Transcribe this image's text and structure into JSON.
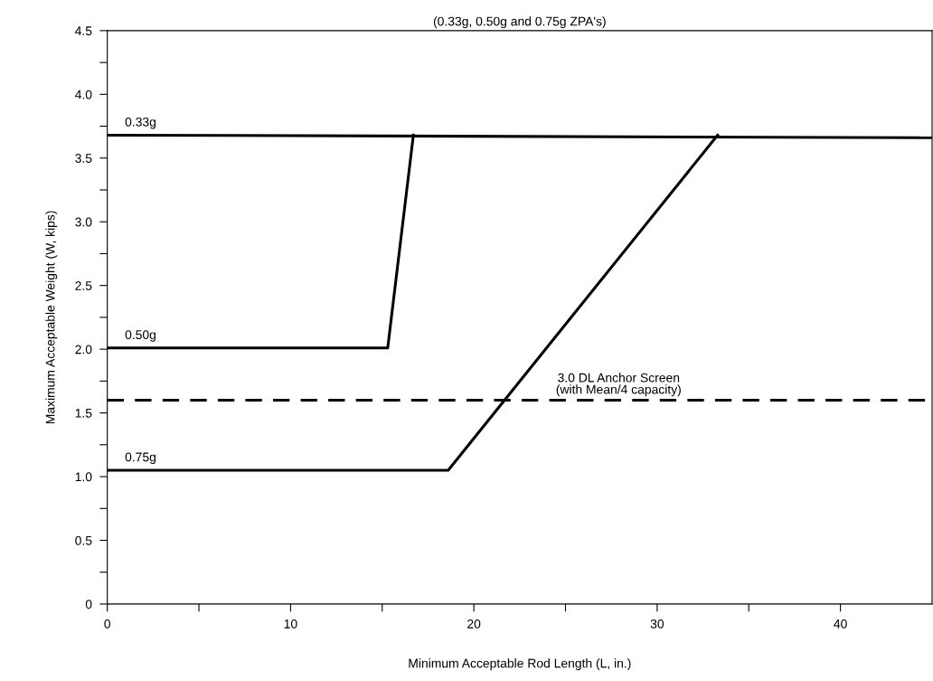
{
  "chart_data": {
    "type": "line",
    "title": "(0.33g, 0.50g and 0.75g ZPA's)",
    "xlabel": "Minimum Acceptable Rod Length (L, in.)",
    "ylabel": "Maximum Acceptable Weight (W, kips)",
    "series": [
      {
        "name": "0.33g",
        "color": "#000000",
        "x": [
          0,
          45
        ],
        "values": [
          3.68,
          3.66
        ]
      },
      {
        "name": "0.50g",
        "color": "#000000",
        "x": [
          0,
          15.3,
          16.7
        ],
        "values": [
          2.01,
          2.01,
          3.68
        ]
      },
      {
        "name": "0.75g",
        "color": "#000000",
        "x": [
          0,
          18.6,
          33.3
        ],
        "values": [
          1.05,
          1.05,
          3.68
        ]
      }
    ],
    "ref_lines": [
      {
        "axis": "y",
        "value": 1.6,
        "label": "3.0 DL Anchor Screen\n(with Mean/4 capacity)",
        "color": "#000000",
        "line_style": "dashed"
      }
    ],
    "xlim": [
      0,
      45
    ],
    "ylim": [
      0,
      4.5
    ],
    "xticks": [
      0,
      {
        "value": 5,
        "label": null
      },
      10,
      {
        "value": 15,
        "label": null
      },
      20,
      {
        "value": 25,
        "label": null
      },
      30,
      {
        "value": 35,
        "label": null
      },
      40
    ],
    "yticks": [
      0,
      {
        "value": 0.25,
        "label": null
      },
      0.5,
      {
        "value": 0.75,
        "label": null
      },
      {
        "value": 1,
        "label": "1.0"
      },
      {
        "value": 1.25,
        "label": null
      },
      1.5,
      {
        "value": 1.75,
        "label": null
      },
      {
        "value": 2,
        "label": "2.0"
      },
      {
        "value": 2.25,
        "label": null
      },
      2.5,
      {
        "value": 2.75,
        "label": null
      },
      {
        "value": 3,
        "label": "3.0"
      },
      {
        "value": 3.25,
        "label": null
      },
      3.5,
      {
        "value": 3.75,
        "label": null
      },
      {
        "value": 4,
        "label": "4.0"
      },
      {
        "value": 4.25,
        "label": null
      },
      4.5
    ],
    "grid": false,
    "legend": false,
    "marker": "none",
    "line_style": "solid"
  }
}
